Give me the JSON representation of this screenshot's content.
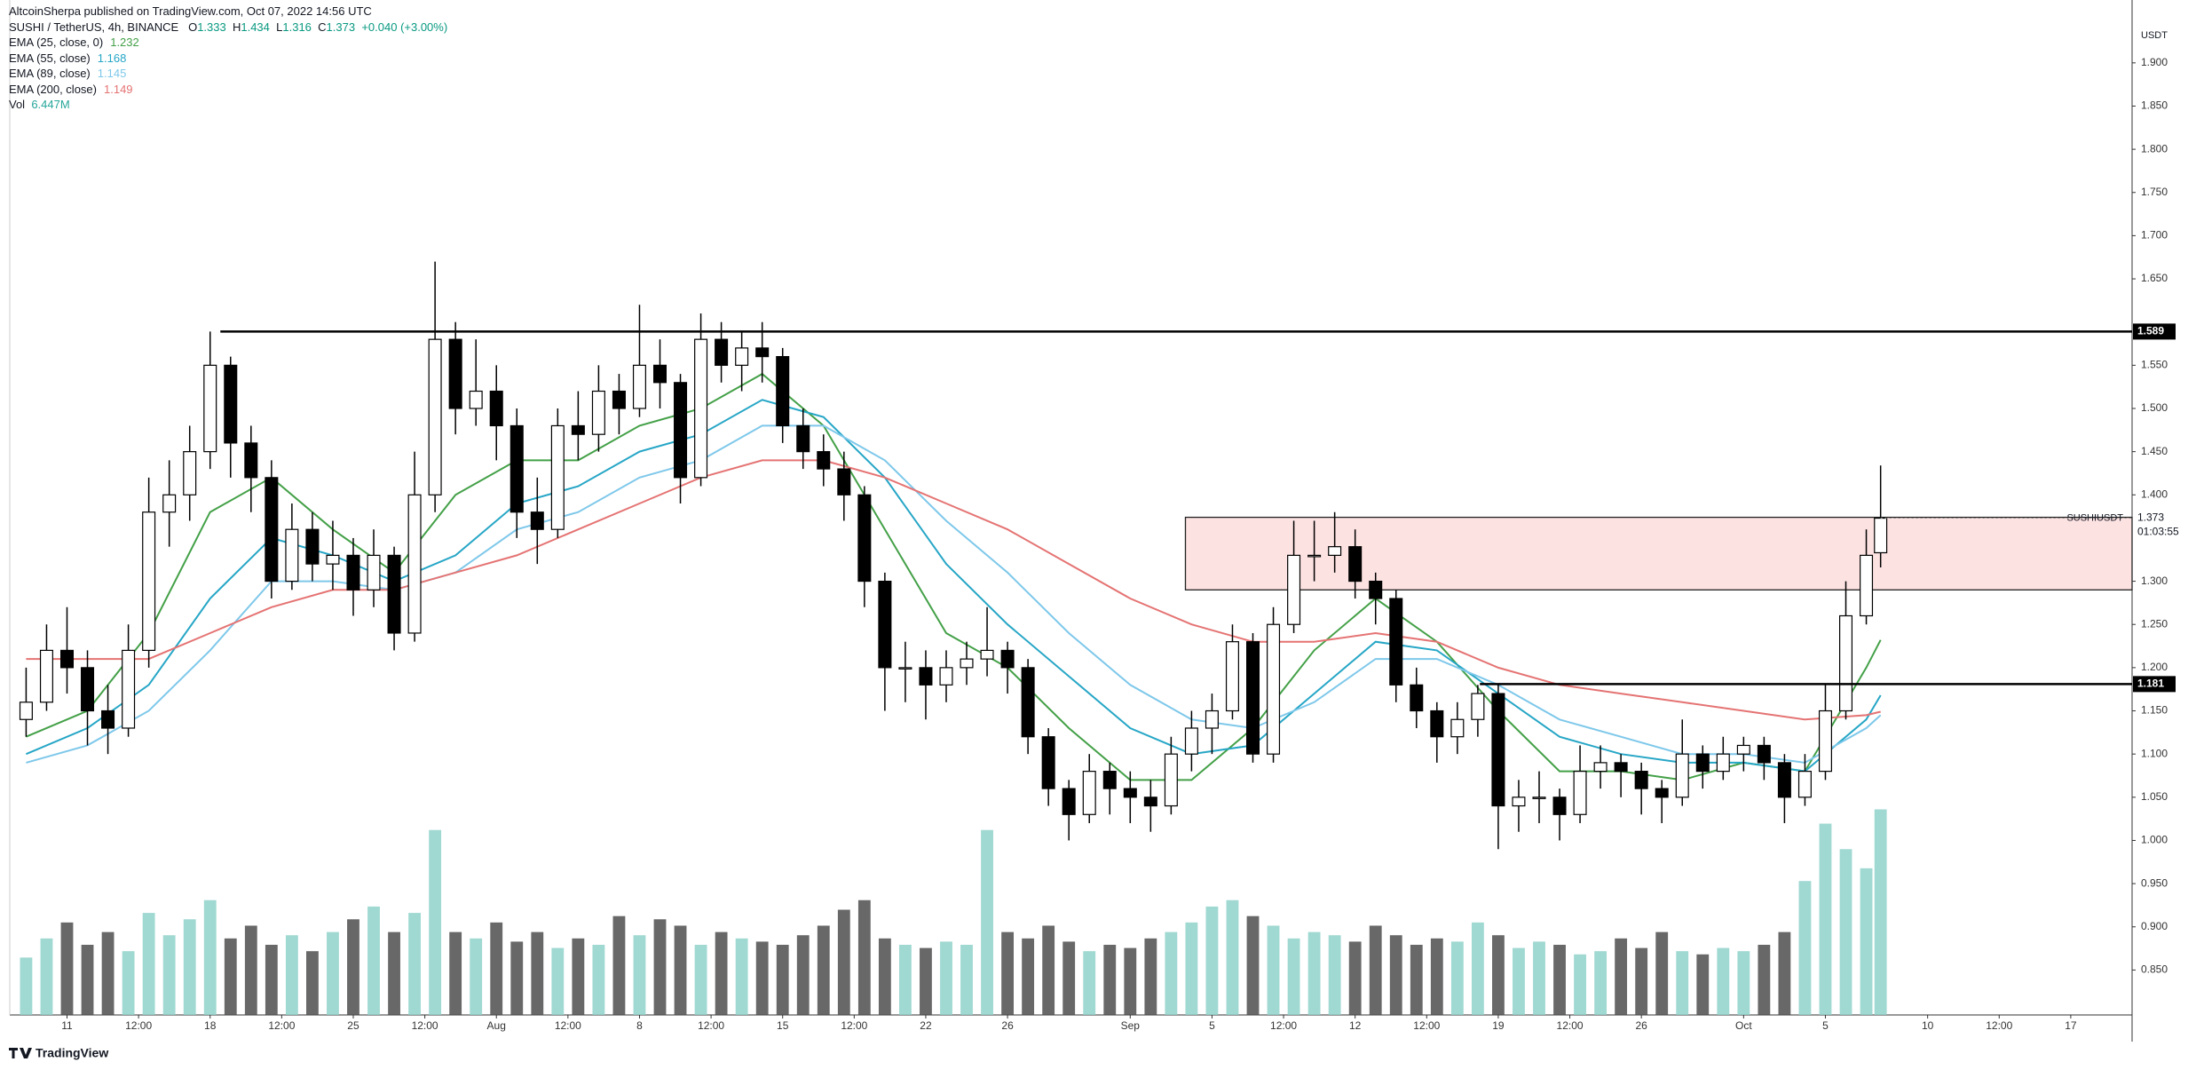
{
  "chart_data": {
    "type": "candlestick",
    "published": "AltcoinSherpa published on TradingView.com, Oct 07, 2022 14:56 UTC",
    "symbol": "SUSHI / TetherUS, 4h, BINANCE",
    "ohlc_labels": [
      "O",
      "H",
      "L",
      "C"
    ],
    "change": "+0.040 (+3.00%)",
    "axis_unit": "USDT",
    "brand": "TradingView",
    "price_tag": "SUSHIUSDT",
    "countdown": "01:03:55",
    "xlim": [
      -2.8,
      101
    ],
    "ylim": [
      0.798,
      1.944
    ],
    "xticks": [
      {
        "value": 0,
        "label": "11"
      },
      {
        "value": 3.5,
        "label": "12:00"
      },
      {
        "value": 7,
        "label": "18"
      },
      {
        "value": 10.5,
        "label": "12:00"
      },
      {
        "value": 14,
        "label": "25"
      },
      {
        "value": 17.5,
        "label": "12:00"
      },
      {
        "value": 21,
        "label": "Aug"
      },
      {
        "value": 24.5,
        "label": "12:00"
      },
      {
        "value": 28,
        "label": "8"
      },
      {
        "value": 31.5,
        "label": "12:00"
      },
      {
        "value": 35,
        "label": "15"
      },
      {
        "value": 38.5,
        "label": "12:00"
      },
      {
        "value": 42,
        "label": "22"
      },
      {
        "value": 46,
        "label": "26"
      },
      {
        "value": 52,
        "label": "Sep"
      },
      {
        "value": 56,
        "label": "5"
      },
      {
        "value": 59.5,
        "label": "12:00"
      },
      {
        "value": 63,
        "label": "12"
      },
      {
        "value": 66.5,
        "label": "12:00"
      },
      {
        "value": 70,
        "label": "19"
      },
      {
        "value": 73.5,
        "label": "12:00"
      },
      {
        "value": 77,
        "label": "26"
      },
      {
        "value": 82,
        "label": "Oct"
      },
      {
        "value": 86,
        "label": "5"
      },
      {
        "value": 91,
        "label": "10"
      },
      {
        "value": 94.5,
        "label": "12:00"
      },
      {
        "value": 98,
        "label": "17"
      }
    ],
    "yticks": [
      {
        "value": 0.85,
        "label": "0.850"
      },
      {
        "value": 0.9,
        "label": "0.900"
      },
      {
        "value": 0.95,
        "label": "0.950"
      },
      {
        "value": 1.0,
        "label": "1.000"
      },
      {
        "value": 1.05,
        "label": "1.050"
      },
      {
        "value": 1.1,
        "label": "1.100"
      },
      {
        "value": 1.15,
        "label": "1.150"
      },
      {
        "value": 1.2,
        "label": "1.200"
      },
      {
        "value": 1.25,
        "label": "1.250"
      },
      {
        "value": 1.3,
        "label": "1.300"
      },
      {
        "value": 1.4,
        "label": "1.400"
      },
      {
        "value": 1.45,
        "label": "1.450"
      },
      {
        "value": 1.5,
        "label": "1.500"
      },
      {
        "value": 1.55,
        "label": "1.550"
      },
      {
        "value": 1.65,
        "label": "1.650"
      },
      {
        "value": 1.7,
        "label": "1.700"
      },
      {
        "value": 1.75,
        "label": "1.750"
      },
      {
        "value": 1.8,
        "label": "1.800"
      },
      {
        "value": 1.85,
        "label": "1.850"
      },
      {
        "value": 1.9,
        "label": "1.900"
      }
    ],
    "up_color": "#ffffff",
    "down_color": "#000000",
    "candles": [
      [
        -2,
        1.14,
        1.2,
        1.12,
        1.16
      ],
      [
        -1,
        1.16,
        1.25,
        1.15,
        1.22
      ],
      [
        0,
        1.22,
        1.27,
        1.17,
        1.2
      ],
      [
        1,
        1.2,
        1.22,
        1.11,
        1.15
      ],
      [
        2,
        1.15,
        1.18,
        1.1,
        1.13
      ],
      [
        3,
        1.13,
        1.25,
        1.12,
        1.22
      ],
      [
        4,
        1.22,
        1.42,
        1.2,
        1.38
      ],
      [
        5,
        1.38,
        1.44,
        1.34,
        1.4
      ],
      [
        6,
        1.4,
        1.48,
        1.37,
        1.45
      ],
      [
        7,
        1.45,
        1.589,
        1.43,
        1.55
      ],
      [
        8,
        1.55,
        1.56,
        1.42,
        1.46
      ],
      [
        9,
        1.46,
        1.48,
        1.38,
        1.42
      ],
      [
        10,
        1.42,
        1.44,
        1.28,
        1.3
      ],
      [
        11,
        1.3,
        1.39,
        1.29,
        1.36
      ],
      [
        12,
        1.36,
        1.38,
        1.3,
        1.32
      ],
      [
        13,
        1.32,
        1.37,
        1.29,
        1.33
      ],
      [
        14,
        1.33,
        1.35,
        1.26,
        1.29
      ],
      [
        15,
        1.29,
        1.36,
        1.27,
        1.33
      ],
      [
        16,
        1.33,
        1.34,
        1.22,
        1.24
      ],
      [
        17,
        1.24,
        1.45,
        1.23,
        1.4
      ],
      [
        18,
        1.4,
        1.67,
        1.38,
        1.58
      ],
      [
        19,
        1.58,
        1.6,
        1.47,
        1.5
      ],
      [
        20,
        1.5,
        1.58,
        1.48,
        1.52
      ],
      [
        21,
        1.52,
        1.55,
        1.44,
        1.48
      ],
      [
        22,
        1.48,
        1.5,
        1.35,
        1.38
      ],
      [
        23,
        1.38,
        1.42,
        1.32,
        1.36
      ],
      [
        24,
        1.36,
        1.5,
        1.35,
        1.48
      ],
      [
        25,
        1.48,
        1.52,
        1.44,
        1.47
      ],
      [
        26,
        1.47,
        1.55,
        1.45,
        1.52
      ],
      [
        27,
        1.52,
        1.54,
        1.47,
        1.5
      ],
      [
        28,
        1.5,
        1.62,
        1.49,
        1.55
      ],
      [
        29,
        1.55,
        1.58,
        1.5,
        1.53
      ],
      [
        30,
        1.53,
        1.54,
        1.39,
        1.42
      ],
      [
        31,
        1.42,
        1.61,
        1.41,
        1.58
      ],
      [
        32,
        1.58,
        1.6,
        1.53,
        1.55
      ],
      [
        33,
        1.55,
        1.59,
        1.52,
        1.57
      ],
      [
        34,
        1.57,
        1.6,
        1.53,
        1.56
      ],
      [
        35,
        1.56,
        1.57,
        1.46,
        1.48
      ],
      [
        36,
        1.48,
        1.5,
        1.43,
        1.45
      ],
      [
        37,
        1.45,
        1.47,
        1.41,
        1.43
      ],
      [
        38,
        1.43,
        1.45,
        1.37,
        1.4
      ],
      [
        39,
        1.4,
        1.41,
        1.27,
        1.3
      ],
      [
        40,
        1.3,
        1.31,
        1.15,
        1.2
      ],
      [
        41,
        1.2,
        1.23,
        1.16,
        1.2
      ],
      [
        42,
        1.2,
        1.22,
        1.14,
        1.18
      ],
      [
        43,
        1.18,
        1.22,
        1.16,
        1.2
      ],
      [
        44,
        1.2,
        1.23,
        1.18,
        1.21
      ],
      [
        45,
        1.21,
        1.27,
        1.19,
        1.22
      ],
      [
        46,
        1.22,
        1.23,
        1.17,
        1.2
      ],
      [
        47,
        1.2,
        1.21,
        1.1,
        1.12
      ],
      [
        48,
        1.12,
        1.13,
        1.04,
        1.06
      ],
      [
        49,
        1.06,
        1.07,
        1.0,
        1.03
      ],
      [
        50,
        1.03,
        1.1,
        1.02,
        1.08
      ],
      [
        51,
        1.08,
        1.09,
        1.03,
        1.06
      ],
      [
        52,
        1.06,
        1.08,
        1.02,
        1.05
      ],
      [
        53,
        1.05,
        1.07,
        1.01,
        1.04
      ],
      [
        54,
        1.04,
        1.12,
        1.03,
        1.1
      ],
      [
        55,
        1.1,
        1.15,
        1.08,
        1.13
      ],
      [
        56,
        1.13,
        1.17,
        1.1,
        1.15
      ],
      [
        57,
        1.15,
        1.25,
        1.14,
        1.23
      ],
      [
        58,
        1.23,
        1.24,
        1.09,
        1.1
      ],
      [
        59,
        1.1,
        1.27,
        1.09,
        1.25
      ],
      [
        60,
        1.25,
        1.37,
        1.24,
        1.33
      ],
      [
        61,
        1.33,
        1.37,
        1.3,
        1.33
      ],
      [
        62,
        1.33,
        1.38,
        1.31,
        1.34
      ],
      [
        63,
        1.34,
        1.36,
        1.28,
        1.3
      ],
      [
        64,
        1.3,
        1.31,
        1.25,
        1.28
      ],
      [
        65,
        1.28,
        1.29,
        1.16,
        1.18
      ],
      [
        66,
        1.18,
        1.2,
        1.13,
        1.15
      ],
      [
        67,
        1.15,
        1.16,
        1.09,
        1.12
      ],
      [
        68,
        1.12,
        1.16,
        1.1,
        1.14
      ],
      [
        69,
        1.14,
        1.18,
        1.12,
        1.17
      ],
      [
        70,
        1.17,
        1.18,
        0.99,
        1.04
      ],
      [
        71,
        1.04,
        1.07,
        1.01,
        1.05
      ],
      [
        72,
        1.05,
        1.08,
        1.02,
        1.05
      ],
      [
        73,
        1.05,
        1.06,
        1.0,
        1.03
      ],
      [
        74,
        1.03,
        1.11,
        1.02,
        1.08
      ],
      [
        75,
        1.08,
        1.11,
        1.06,
        1.09
      ],
      [
        76,
        1.09,
        1.1,
        1.05,
        1.08
      ],
      [
        77,
        1.08,
        1.09,
        1.03,
        1.06
      ],
      [
        78,
        1.06,
        1.07,
        1.02,
        1.05
      ],
      [
        79,
        1.05,
        1.14,
        1.04,
        1.1
      ],
      [
        80,
        1.1,
        1.11,
        1.06,
        1.08
      ],
      [
        81,
        1.08,
        1.12,
        1.07,
        1.1
      ],
      [
        82,
        1.1,
        1.12,
        1.08,
        1.11
      ],
      [
        83,
        1.11,
        1.12,
        1.07,
        1.09
      ],
      [
        84,
        1.09,
        1.1,
        1.02,
        1.05
      ],
      [
        85,
        1.05,
        1.1,
        1.04,
        1.08
      ],
      [
        86,
        1.08,
        1.18,
        1.07,
        1.15
      ],
      [
        87,
        1.15,
        1.3,
        1.14,
        1.26
      ],
      [
        88,
        1.26,
        1.36,
        1.25,
        1.33
      ],
      [
        88.7,
        1.333,
        1.434,
        1.316,
        1.373
      ]
    ],
    "volume": {
      "name": "Vol",
      "up_color": "#8fd1ca",
      "down_color": "#4d4d4d",
      "vlim": [
        0,
        6.6
      ],
      "last_value_label": "6.447M",
      "values": [
        1.8,
        2.4,
        2.9,
        2.2,
        2.6,
        2.0,
        3.2,
        2.5,
        3.0,
        3.6,
        2.4,
        2.8,
        2.2,
        2.5,
        2.0,
        2.6,
        3.0,
        3.4,
        2.6,
        3.2,
        5.8,
        2.6,
        2.4,
        2.9,
        2.3,
        2.6,
        2.1,
        2.4,
        2.2,
        3.1,
        2.5,
        3.0,
        2.8,
        2.2,
        2.6,
        2.4,
        2.3,
        2.2,
        2.5,
        2.8,
        3.3,
        3.6,
        2.4,
        2.2,
        2.1,
        2.3,
        2.2,
        5.8,
        2.6,
        2.4,
        2.8,
        2.3,
        2.0,
        2.2,
        2.1,
        2.4,
        2.6,
        2.9,
        3.4,
        3.6,
        3.1,
        2.8,
        2.4,
        2.6,
        2.5,
        2.3,
        2.8,
        2.5,
        2.2,
        2.4,
        2.3,
        2.9,
        2.5,
        2.1,
        2.3,
        2.2,
        1.9,
        2.0,
        2.4,
        2.1,
        2.6,
        2.0,
        1.9,
        2.1,
        2.0,
        2.2,
        2.6,
        4.2,
        6.0,
        5.2,
        4.6,
        6.447
      ]
    },
    "ema_x": [
      -2,
      1,
      4,
      7,
      10,
      13,
      16,
      19,
      22,
      25,
      28,
      31,
      34,
      37,
      40,
      43,
      46,
      49,
      52,
      55,
      58,
      61,
      64,
      67,
      70,
      73,
      76,
      79,
      82,
      85,
      88,
      88.7
    ],
    "emas": [
      {
        "name": "EMA (25, close, 0)",
        "color": "#43a047",
        "values": [
          1.12,
          1.15,
          1.24,
          1.38,
          1.42,
          1.36,
          1.31,
          1.4,
          1.44,
          1.44,
          1.48,
          1.5,
          1.54,
          1.48,
          1.36,
          1.24,
          1.2,
          1.13,
          1.07,
          1.07,
          1.13,
          1.22,
          1.28,
          1.23,
          1.15,
          1.08,
          1.08,
          1.07,
          1.09,
          1.08,
          1.2,
          1.232
        ]
      },
      {
        "name": "EMA (55, close)",
        "color": "#26a6c6",
        "values": [
          1.1,
          1.13,
          1.18,
          1.28,
          1.35,
          1.33,
          1.3,
          1.33,
          1.39,
          1.41,
          1.45,
          1.47,
          1.51,
          1.49,
          1.42,
          1.32,
          1.25,
          1.19,
          1.13,
          1.1,
          1.11,
          1.17,
          1.23,
          1.22,
          1.17,
          1.12,
          1.1,
          1.09,
          1.09,
          1.08,
          1.14,
          1.168
        ]
      },
      {
        "name": "EMA (89, close)",
        "color": "#7ec8ea",
        "values": [
          1.09,
          1.11,
          1.15,
          1.22,
          1.3,
          1.3,
          1.29,
          1.31,
          1.36,
          1.38,
          1.42,
          1.44,
          1.48,
          1.48,
          1.44,
          1.37,
          1.31,
          1.24,
          1.18,
          1.14,
          1.13,
          1.16,
          1.21,
          1.21,
          1.18,
          1.14,
          1.12,
          1.1,
          1.1,
          1.09,
          1.13,
          1.145
        ]
      },
      {
        "name": "EMA (200, close)",
        "color": "#e57373",
        "values": [
          1.21,
          1.21,
          1.21,
          1.24,
          1.27,
          1.29,
          1.29,
          1.31,
          1.33,
          1.36,
          1.39,
          1.42,
          1.44,
          1.44,
          1.42,
          1.39,
          1.36,
          1.32,
          1.28,
          1.25,
          1.23,
          1.23,
          1.24,
          1.23,
          1.2,
          1.18,
          1.17,
          1.16,
          1.15,
          1.14,
          1.145,
          1.149
        ]
      }
    ],
    "levels": [
      {
        "value": 1.589,
        "label": "1.589",
        "start": 7.5
      },
      {
        "value": 1.181,
        "label": "1.181",
        "start": 69.1
      }
    ],
    "zone": {
      "top": 1.374,
      "bottom": 1.29,
      "start": 54.7,
      "color": "#fde2e2"
    }
  }
}
